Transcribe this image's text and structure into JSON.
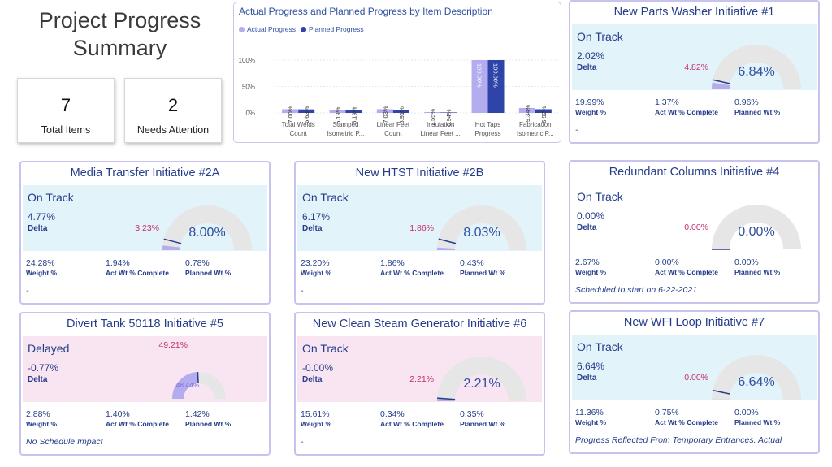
{
  "page": {
    "title_line1": "Project Progress",
    "title_line2": "Summary"
  },
  "kpis": [
    {
      "value": "7",
      "label": "Total Items"
    },
    {
      "value": "2",
      "label": "Needs Attention"
    }
  ],
  "chart_data": {
    "type": "bar",
    "title": "Actual Progress and Planned Progress by Item Description",
    "categories": [
      [
        "Total Welds",
        "Count"
      ],
      [
        "Stamped",
        "Isometric P..."
      ],
      [
        "Linear Feet",
        "Count"
      ],
      [
        "Insulation",
        "Linear Feet ..."
      ],
      [
        "Hot Taps",
        "Progress"
      ],
      [
        "Fabrication",
        "Isometric P..."
      ]
    ],
    "series": [
      {
        "name": "Actual Progress",
        "color": "#b3acee",
        "values": [
          7.0,
          5.19,
          7.03,
          1.55,
          100.0,
          9.34
        ],
        "labels": [
          "7.00%",
          "5.19%",
          "7.03%",
          "1.55%",
          "100.00%",
          "9.34%"
        ]
      },
      {
        "name": "Planned Progress",
        "color": "#2e44a8",
        "values": [
          6.63,
          5.19,
          5.91,
          0.94,
          100.0,
          6.92
        ],
        "labels": [
          "6.63%",
          "5.19%",
          "5.91%",
          "0.94%",
          "100.00%",
          "6.92%"
        ]
      }
    ],
    "ylim": [
      0,
      100
    ],
    "yticks": [
      "0%",
      "50%",
      "100%"
    ],
    "grid": true,
    "legend": "top-left"
  },
  "labels": {
    "delta": "Delta",
    "weight": "Weight %",
    "act_wt": "Act Wt % Complete",
    "planned_wt": "Planned Wt %"
  },
  "cards": [
    {
      "title": "New Parts Washer Initiative #1",
      "status": "On Track",
      "style": "ontrack",
      "delta": "2.02%",
      "actual_pct": 4.82,
      "planned_pct": 6.84,
      "actual_label": "4.82%",
      "center_label": "6.84%",
      "weight": "19.99%",
      "act_wt": "1.37%",
      "planned_wt": "0.96%",
      "note": "-"
    },
    {
      "title": "Media Transfer Initiative #2A",
      "status": "On Track",
      "style": "ontrack",
      "delta": "4.77%",
      "actual_pct": 3.23,
      "planned_pct": 8.0,
      "actual_label": "3.23%",
      "center_label": "8.00%",
      "weight": "24.28%",
      "act_wt": "1.94%",
      "planned_wt": "0.78%",
      "note": "-"
    },
    {
      "title": "New HTST Initiative #2B",
      "status": "On Track",
      "style": "ontrack",
      "delta": "6.17%",
      "actual_pct": 1.86,
      "planned_pct": 8.03,
      "actual_label": "1.86%",
      "center_label": "8.03%",
      "weight": "23.20%",
      "act_wt": "1.86%",
      "planned_wt": "0.43%",
      "note": "-"
    },
    {
      "title": "Redundant Columns Initiative #4",
      "status": "On Track",
      "style": "none",
      "delta": "0.00%",
      "actual_pct": 0.0,
      "planned_pct": 0.0,
      "actual_label": "0.00%",
      "center_label": "0.00%",
      "weight": "2.67%",
      "act_wt": "0.00%",
      "planned_wt": "0.00%",
      "note": "Scheduled to start on 6-22-2021"
    },
    {
      "title": "Divert Tank 50118 Initiative #5",
      "status": "Delayed",
      "style": "delayed",
      "delta": "-0.77%",
      "actual_pct": 49.21,
      "planned_pct": 48.44,
      "actual_label": "49.21%",
      "center_label": "48.44%",
      "weight": "2.88%",
      "act_wt": "1.40%",
      "planned_wt": "1.42%",
      "note": "No Schedule Impact"
    },
    {
      "title": "New Clean Steam Generator Initiative #6",
      "status": "On Track",
      "style": "delayed",
      "delta": "-0.00%",
      "actual_pct": 2.21,
      "planned_pct": 2.21,
      "actual_label": "2.21%",
      "center_label": "2.21%",
      "weight": "15.61%",
      "act_wt": "0.34%",
      "planned_wt": "0.35%",
      "note": "-"
    },
    {
      "title": "New WFI Loop Initiative #7",
      "status": "On Track",
      "style": "ontrack",
      "delta": "6.64%",
      "actual_pct": 0.0,
      "planned_pct": 6.64,
      "actual_label": "0.00%",
      "center_label": "6.64%",
      "weight": "11.36%",
      "act_wt": "0.75%",
      "planned_wt": "0.00%",
      "note": "Progress Reflected From Temporary Entrances. Actual"
    }
  ]
}
